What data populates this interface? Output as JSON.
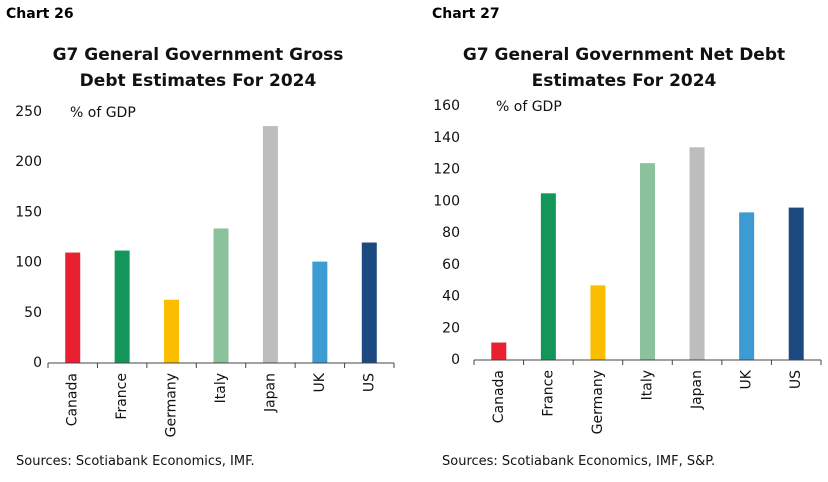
{
  "chart_data": [
    {
      "type": "bar",
      "label": "Chart 26",
      "title": "G7 General Government Gross Debt Estimates For 2024",
      "ylabel": "% of GDP",
      "categories": [
        "Canada",
        "France",
        "Germany",
        "Italy",
        "Japan",
        "UK",
        "US"
      ],
      "values": [
        110,
        112,
        63,
        134,
        236,
        101,
        120
      ],
      "colors": [
        "#e8202f",
        "#12965a",
        "#fbbd00",
        "#8cc19e",
        "#bdbdbd",
        "#3d9bd3",
        "#1c4a80"
      ],
      "ylim": [
        0,
        250
      ],
      "yticks": [
        0,
        50,
        100,
        150,
        200,
        250
      ],
      "grid": false,
      "source": "Sources: Scotiabank Economics, IMF."
    },
    {
      "type": "bar",
      "label": "Chart 27",
      "title": "G7 General Government Net Debt Estimates For 2024",
      "ylabel": "% of GDP",
      "categories": [
        "Canada",
        "France",
        "Germany",
        "Italy",
        "Japan",
        "UK",
        "US"
      ],
      "values": [
        11,
        105,
        47,
        124,
        134,
        93,
        96
      ],
      "colors": [
        "#e8202f",
        "#12965a",
        "#fbbd00",
        "#8cc19e",
        "#bdbdbd",
        "#3d9bd3",
        "#1c4a80"
      ],
      "ylim": [
        0,
        160
      ],
      "yticks": [
        0,
        20,
        40,
        60,
        80,
        100,
        120,
        140,
        160
      ],
      "grid": false,
      "source": "Sources: Scotiabank Economics, IMF, S&P."
    }
  ]
}
